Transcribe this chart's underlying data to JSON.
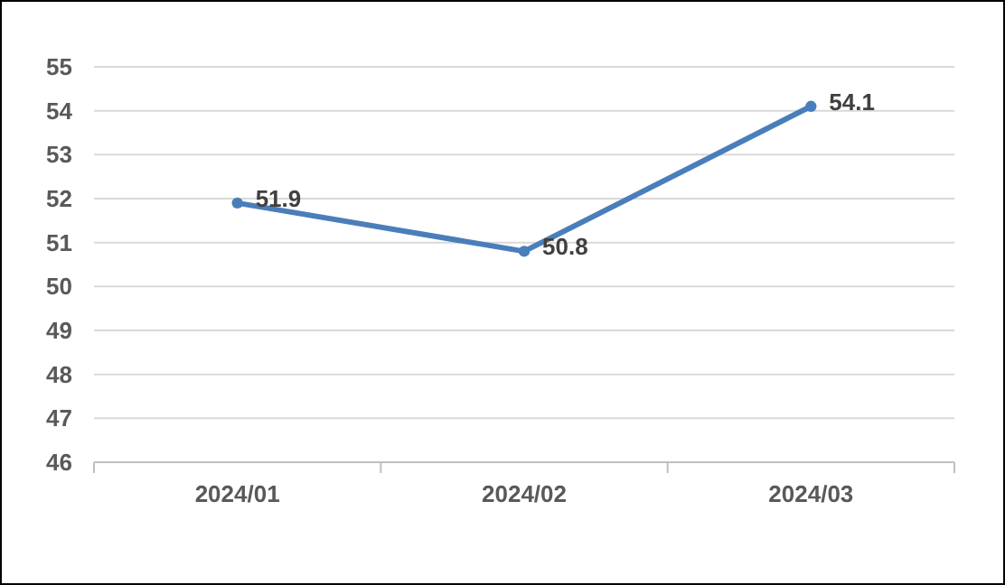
{
  "chart_data": {
    "type": "line",
    "categories": [
      "2024/01",
      "2024/02",
      "2024/03"
    ],
    "series": [
      {
        "color": "#4a7ebb",
        "values": [
          51.9,
          50.8,
          54.1
        ]
      }
    ],
    "ylim": [
      46,
      55
    ],
    "yticks": [
      46,
      47,
      48,
      49,
      50,
      51,
      52,
      53,
      54,
      55
    ],
    "grid": "y",
    "marker": "circle",
    "data_labels": true
  }
}
